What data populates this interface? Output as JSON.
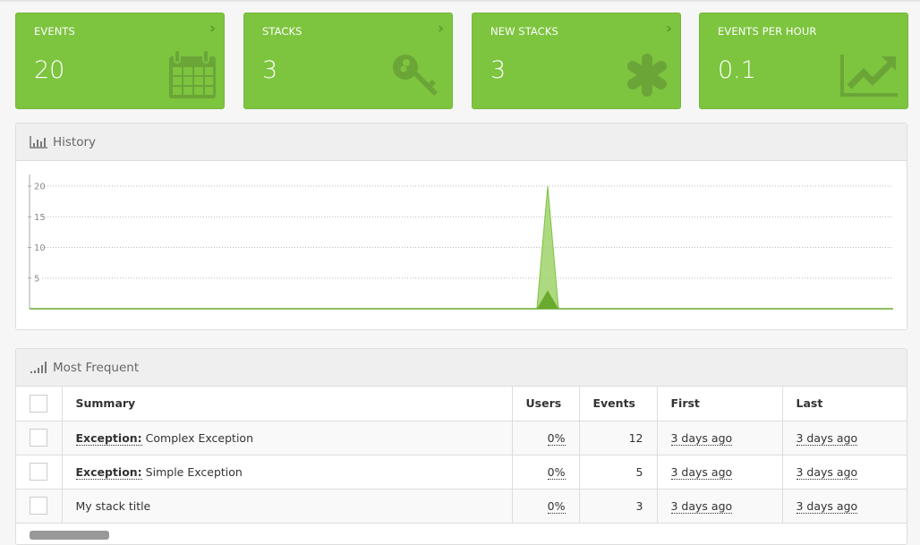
{
  "colors": {
    "accent": "#7dc43f",
    "icon": "#6ba538",
    "series_total": "#9fd26a",
    "series_new": "#6aaa2e"
  },
  "cards": [
    {
      "label": "EVENTS",
      "value": "20",
      "icon": "calendar-icon",
      "has_link": true
    },
    {
      "label": "STACKS",
      "value": "3",
      "icon": "key-icon",
      "has_link": true
    },
    {
      "label": "NEW STACKS",
      "value": "3",
      "icon": "asterisk-icon",
      "has_link": true
    },
    {
      "label": "EVENTS PER HOUR",
      "value": "0.1",
      "icon": "line-chart-icon",
      "has_link": false
    }
  ],
  "history": {
    "title": "History",
    "icon": "bar-chart-icon"
  },
  "chart_data": {
    "type": "area",
    "ylim": [
      0,
      20
    ],
    "yticks": [
      "5",
      "10",
      "15",
      "20"
    ],
    "grid": true,
    "series": [
      {
        "values": [
          0,
          0,
          0,
          0,
          0,
          0,
          0,
          0,
          0,
          0,
          0,
          0,
          0,
          0,
          0,
          0,
          0,
          0,
          0,
          0,
          0,
          0,
          0,
          0,
          0,
          0,
          0,
          0,
          0,
          0,
          0,
          0,
          0,
          0,
          0,
          0,
          0,
          0,
          0,
          0,
          0,
          0,
          0,
          0,
          0,
          0,
          0,
          0,
          20,
          0,
          0,
          0,
          0,
          0,
          0,
          0,
          0,
          0,
          0,
          0,
          0,
          0,
          0,
          0,
          0,
          0,
          0,
          0,
          0,
          0,
          0,
          0,
          0,
          0,
          0,
          0,
          0,
          0,
          0,
          0,
          0
        ]
      },
      {
        "values": [
          0,
          0,
          0,
          0,
          0,
          0,
          0,
          0,
          0,
          0,
          0,
          0,
          0,
          0,
          0,
          0,
          0,
          0,
          0,
          0,
          0,
          0,
          0,
          0,
          0,
          0,
          0,
          0,
          0,
          0,
          0,
          0,
          0,
          0,
          0,
          0,
          0,
          0,
          0,
          0,
          0,
          0,
          0,
          0,
          0,
          0,
          0,
          0,
          3,
          0,
          0,
          0,
          0,
          0,
          0,
          0,
          0,
          0,
          0,
          0,
          0,
          0,
          0,
          0,
          0,
          0,
          0,
          0,
          0,
          0,
          0,
          0,
          0,
          0,
          0,
          0,
          0,
          0,
          0,
          0,
          0
        ]
      }
    ]
  },
  "most_frequent": {
    "title": "Most Frequent",
    "icon": "signal-icon",
    "columns": [
      "Summary",
      "Users",
      "Events",
      "First",
      "Last"
    ],
    "rows": [
      {
        "type": "Exception:",
        "summary": "Complex Exception",
        "users": "0%",
        "events": "12",
        "first": "3 days ago",
        "last": "3 days ago"
      },
      {
        "type": "Exception:",
        "summary": "Simple Exception",
        "users": "0%",
        "events": "5",
        "first": "3 days ago",
        "last": "3 days ago"
      },
      {
        "type": "",
        "summary": "My stack title",
        "users": "0%",
        "events": "3",
        "first": "3 days ago",
        "last": "3 days ago"
      }
    ]
  }
}
